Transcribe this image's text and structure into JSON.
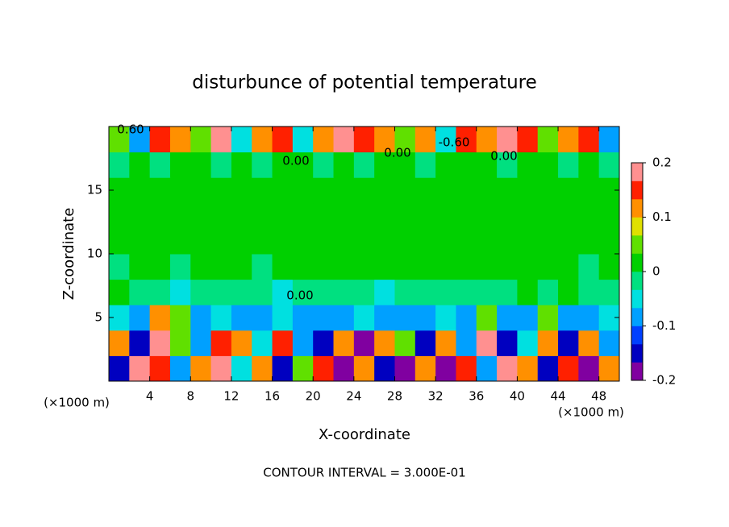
{
  "chart_data": {
    "type": "heatmap",
    "title": "disturbunce of potential temperature",
    "xlabel": "X-coordinate",
    "ylabel": "Z-coordinate",
    "x_unit_label_left": "(×1000 m)",
    "x_unit_label_right": "(×1000 m)",
    "footer": "CONTOUR INTERVAL = 3.000E-01",
    "annotations": [
      "0.60",
      "-0.60",
      "0.00",
      "0.00",
      "0.00",
      "0.00"
    ],
    "xlim": [
      0,
      50
    ],
    "ylim": [
      0,
      20
    ],
    "xticks": [
      4,
      8,
      12,
      16,
      20,
      24,
      28,
      32,
      36,
      40,
      44,
      48
    ],
    "yticks": [
      5,
      10,
      15
    ],
    "clim": [
      -0.2,
      0.2
    ],
    "cticks": [
      0.2,
      0.1,
      0,
      -0.1,
      -0.2
    ],
    "colormap": [
      "#8000a0",
      "#0000c0",
      "#0040ff",
      "#00a0ff",
      "#00e0e0",
      "#00e080",
      "#00d000",
      "#60e000",
      "#e0e000",
      "#ff9000",
      "#ff2000",
      "#ff9090"
    ],
    "x": [
      1,
      3,
      5,
      7,
      9,
      11,
      13,
      15,
      17,
      19,
      21,
      23,
      25,
      27,
      29,
      31,
      33,
      35,
      37,
      39,
      41,
      43,
      45,
      47,
      49
    ],
    "y": [
      1,
      3,
      5,
      7,
      9,
      11,
      13,
      15,
      17,
      19
    ],
    "z": [
      [
        -0.15,
        0.2,
        0.15,
        -0.1,
        0.1,
        0.2,
        -0.05,
        0.1,
        -0.15,
        0.05,
        0.15,
        -0.2,
        0.1,
        -0.15,
        -0.2,
        0.1,
        -0.2,
        0.15,
        -0.1,
        0.2,
        0.1,
        -0.15,
        0.15,
        -0.2,
        0.1
      ],
      [
        0.1,
        -0.15,
        0.2,
        0.05,
        -0.1,
        0.15,
        0.1,
        -0.05,
        0.15,
        -0.1,
        -0.15,
        0.1,
        -0.2,
        0.1,
        0.05,
        -0.15,
        0.1,
        -0.1,
        0.2,
        -0.15,
        -0.05,
        0.1,
        -0.15,
        0.1,
        -0.1
      ],
      [
        -0.05,
        -0.08,
        0.1,
        0.05,
        -0.08,
        -0.05,
        -0.1,
        -0.08,
        -0.05,
        -0.1,
        -0.08,
        -0.1,
        -0.05,
        -0.08,
        -0.1,
        -0.08,
        -0.05,
        -0.1,
        0.05,
        -0.08,
        -0.1,
        0.05,
        -0.08,
        -0.1,
        -0.05
      ],
      [
        0.02,
        -0.02,
        -0.03,
        -0.04,
        -0.02,
        -0.03,
        -0.02,
        -0.03,
        -0.04,
        -0.02,
        -0.03,
        -0.02,
        -0.03,
        -0.04,
        -0.02,
        -0.03,
        -0.02,
        -0.03,
        -0.02,
        -0.02,
        0.01,
        -0.02,
        0.01,
        -0.02,
        -0.02
      ],
      [
        -0.01,
        0,
        0,
        -0.01,
        0,
        0,
        0,
        -0.01,
        0,
        0,
        0.01,
        0,
        0,
        0,
        0,
        0,
        0,
        0,
        0,
        0,
        0,
        0,
        0,
        -0.01,
        0
      ],
      [
        0,
        0,
        0,
        0,
        0,
        0,
        0,
        0,
        0,
        0,
        0,
        0,
        0,
        0,
        0,
        0,
        0,
        0,
        0,
        0,
        0,
        0,
        0,
        0,
        0
      ],
      [
        0,
        0,
        0,
        0,
        0,
        0,
        0,
        0,
        0,
        0,
        0,
        0,
        0,
        0,
        0,
        0,
        0,
        0,
        0,
        0,
        0,
        0,
        0,
        0,
        0
      ],
      [
        0,
        0,
        0,
        0,
        0,
        0,
        0,
        0,
        0,
        0,
        0,
        0,
        0,
        0,
        0,
        0,
        0,
        0,
        0,
        0,
        0,
        0,
        0,
        0,
        0
      ],
      [
        -0.01,
        0,
        -0.02,
        0,
        0.02,
        -0.01,
        0,
        -0.02,
        0.02,
        0,
        -0.01,
        0,
        -0.02,
        0,
        0,
        -0.01,
        0,
        0,
        0,
        -0.02,
        0,
        0,
        -0.01,
        0,
        -0.02
      ],
      [
        0.05,
        -0.1,
        0.15,
        0.1,
        0.05,
        0.2,
        -0.05,
        0.1,
        0.15,
        -0.05,
        0.1,
        0.2,
        0.15,
        0.1,
        0.05,
        0.1,
        -0.05,
        0.15,
        0.1,
        0.2,
        0.15,
        0.05,
        0.1,
        0.15,
        -0.1
      ]
    ]
  }
}
